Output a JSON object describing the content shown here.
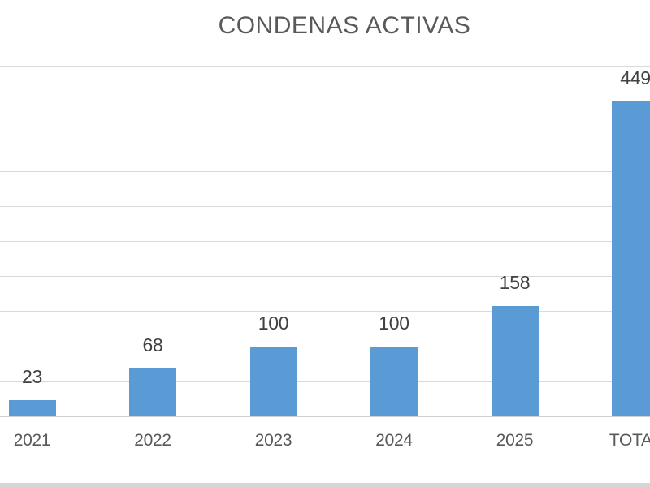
{
  "chart_data": {
    "type": "bar",
    "title": "CONDENAS ACTIVAS",
    "categories": [
      "2021",
      "2022",
      "2023",
      "2024",
      "2025",
      "TOTAL"
    ],
    "values": [
      23,
      68,
      100,
      100,
      158,
      449
    ],
    "data_labels": [
      "23",
      "68",
      "100",
      "100",
      "158",
      "449"
    ],
    "xlabel": "",
    "ylabel": "",
    "ylim": [
      0,
      500
    ],
    "gridline_step": 50,
    "grid": true,
    "legend": false,
    "y_axis_tick_labels_visible": false,
    "notes": "chart cropped at left and right edges; TOTAL bar and its labels are partially cut off at the right edge",
    "bar_color": "#5b9bd5",
    "gridline_color": "#dadada",
    "axis_line_color": "#cfcfcf",
    "title_color": "#595959",
    "data_label_color": "#404040",
    "category_label_color": "#595959",
    "bottom_strip_color": "#d6d6d6"
  }
}
